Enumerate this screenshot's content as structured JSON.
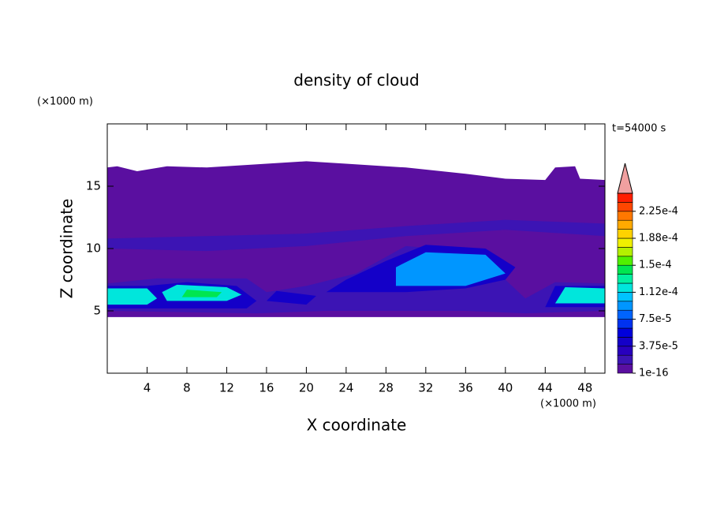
{
  "chart_data": {
    "type": "contour",
    "title": "density of cloud",
    "annotation": "t=54000 s",
    "x_label": "X coordinate",
    "y_label": "Z coordinate",
    "x_unit": "(×1000 m)",
    "y_unit": "(×1000 m)",
    "xlim": [
      0,
      50
    ],
    "ylim": [
      0,
      20
    ],
    "xticks": [
      4,
      8,
      12,
      16,
      20,
      24,
      28,
      32,
      36,
      40,
      44,
      48
    ],
    "yticks": [
      5,
      10,
      15
    ],
    "colorbar": {
      "clim": [
        0,
        0.00025
      ],
      "levels": [
        1e-16,
        1.25e-05,
        2.5e-05,
        3.75e-05,
        5e-05,
        6.25e-05,
        7.5e-05,
        8.75e-05,
        0.0001,
        0.0001125,
        0.000125,
        0.0001375,
        0.00015,
        0.0001625,
        0.000175,
        0.0001875,
        0.0002,
        0.0002125,
        0.000225,
        0.0002375,
        0.00025
      ],
      "colors": [
        "#5a0fa0",
        "#3c14b4",
        "#2800be",
        "#1400c8",
        "#0000dc",
        "#0032f0",
        "#0064ff",
        "#0096ff",
        "#00c3ff",
        "#00e6dc",
        "#00f0a0",
        "#00e650",
        "#50f000",
        "#b4f000",
        "#f0f000",
        "#ffd200",
        "#ffaa00",
        "#ff7800",
        "#ff4600",
        "#ff1e00"
      ],
      "extend_color": "#f0a0a0",
      "ticks": [
        {
          "value": 1e-16,
          "label": "1e-16"
        },
        {
          "value": 3.75e-05,
          "label": "3.75e-5"
        },
        {
          "value": 7.5e-05,
          "label": "7.5e-5"
        },
        {
          "value": 0.0001125,
          "label": "1.12e-4"
        },
        {
          "value": 0.00015,
          "label": "1.5e-4"
        },
        {
          "value": 0.0001875,
          "label": "1.88e-4"
        },
        {
          "value": 0.000225,
          "label": "2.25e-4"
        }
      ]
    }
  }
}
